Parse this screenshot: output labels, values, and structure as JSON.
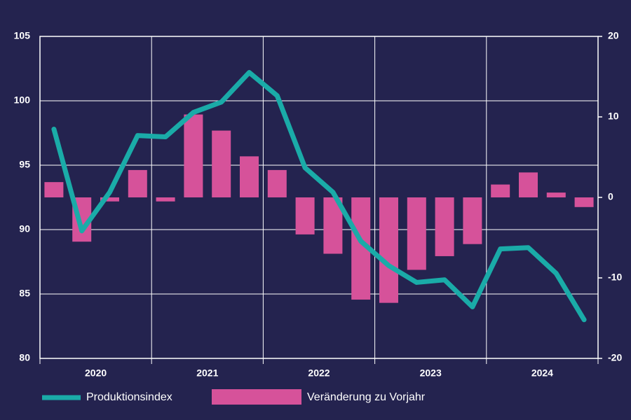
{
  "chart_data": {
    "type": "bar-line",
    "categories": [
      null,
      null,
      null,
      null,
      null,
      null,
      null,
      null,
      null,
      null,
      null,
      null,
      null,
      null,
      null,
      null,
      null,
      null,
      null,
      null
    ],
    "year_labels": [
      "2020",
      "2021",
      "2022",
      "2023",
      "2024"
    ],
    "series": [
      {
        "name": "Produktionsindex",
        "type": "line",
        "color": "#1aaba8",
        "values": [
          97.8,
          89.9,
          92.9,
          97.3,
          97.2,
          99.1,
          99.9,
          102.2,
          100.4,
          94.8,
          92.9,
          89.1,
          87.2,
          85.9,
          86.1,
          84.0,
          88.5,
          88.6,
          86.6,
          83.0
        ]
      },
      {
        "name": "Veränderung zu Vorjahr",
        "type": "bar",
        "axis": "y2",
        "color": "#d6529a",
        "values": [
          1.9,
          -5.5,
          -0.5,
          3.4,
          -0.5,
          10.3,
          8.3,
          5.1,
          3.4,
          -4.6,
          -7.0,
          -12.7,
          -13.1,
          -9.0,
          -7.3,
          -5.8,
          1.6,
          3.1,
          0.6,
          -1.2
        ]
      }
    ],
    "ylim": [
      80,
      105
    ],
    "yticks": [
      80,
      85,
      90,
      95,
      100,
      105
    ],
    "y2lim": [
      -20,
      20
    ],
    "y2ticks": [
      -20,
      -10,
      0,
      10,
      20
    ],
    "grid": true
  }
}
